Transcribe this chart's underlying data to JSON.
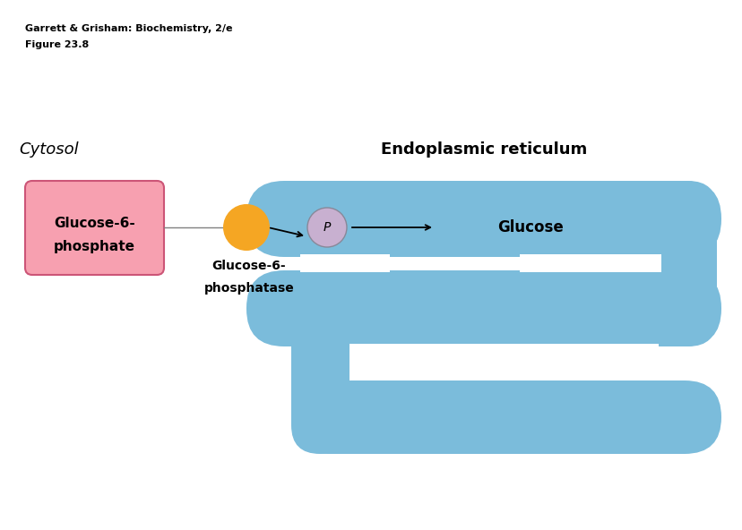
{
  "bg_color": "#ffffff",
  "er_color": "#7bbcdb",
  "er_stroke": "#5a9fc0",
  "glucose6p_box_color": "#f7a0b0",
  "glucose6p_box_edge": "#cc5577",
  "enzyme_color": "#f5a623",
  "p_circle_color": "#c8b0d0",
  "p_circle_edge": "#888899",
  "title_line1": "Garrett & Grisham: Biochemistry, 2/e",
  "title_line2": "Figure 23.8",
  "cytosol_label": "Cytosol",
  "er_label": "Endoplasmic reticulum",
  "glc6p_label_line1": "Glucose-6-",
  "glc6p_label_line2": "phosphate",
  "enzyme_label_line1": "Glucose-6-",
  "enzyme_label_line2": "phosphatase",
  "glucose_label": "Glucose",
  "p_label": "P"
}
